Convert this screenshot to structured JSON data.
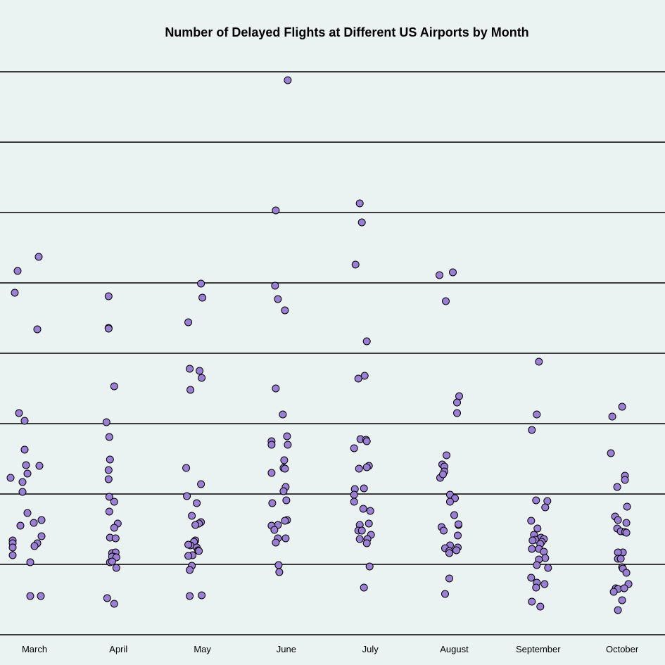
{
  "chart_data": {
    "type": "scatter",
    "title": "Number of Delayed Flights at Different US Airports by Month",
    "xlabel": "",
    "ylabel": "",
    "categories": [
      "March",
      "April",
      "May",
      "June",
      "July",
      "August",
      "September",
      "October"
    ],
    "ylim": [
      0,
      8
    ],
    "gridlines": [
      0,
      1,
      2,
      3,
      4,
      5,
      6,
      7,
      8
    ],
    "grid": true,
    "legend": "none",
    "colors": {
      "point_fill": "#9b7fd4",
      "point_stroke": "#000000",
      "background": "#eaf2f2"
    },
    "points": [
      {
        "x": "March",
        "jitter": -0.24,
        "y": 5.17
      },
      {
        "x": "March",
        "jitter": 0.06,
        "y": 5.37
      },
      {
        "x": "March",
        "jitter": -0.28,
        "y": 4.86
      },
      {
        "x": "March",
        "jitter": 0.04,
        "y": 4.34
      },
      {
        "x": "March",
        "jitter": -0.22,
        "y": 3.15
      },
      {
        "x": "March",
        "jitter": -0.14,
        "y": 3.04
      },
      {
        "x": "March",
        "jitter": -0.14,
        "y": 2.63
      },
      {
        "x": "March",
        "jitter": -0.12,
        "y": 2.41
      },
      {
        "x": "March",
        "jitter": 0.07,
        "y": 2.4
      },
      {
        "x": "March",
        "jitter": -0.1,
        "y": 2.29
      },
      {
        "x": "March",
        "jitter": -0.34,
        "y": 2.23
      },
      {
        "x": "March",
        "jitter": -0.17,
        "y": 2.17
      },
      {
        "x": "March",
        "jitter": -0.17,
        "y": 2.03
      },
      {
        "x": "March",
        "jitter": -0.1,
        "y": 1.73
      },
      {
        "x": "March",
        "jitter": 0.1,
        "y": 1.63
      },
      {
        "x": "March",
        "jitter": -0.01,
        "y": 1.59
      },
      {
        "x": "March",
        "jitter": -0.2,
        "y": 1.55
      },
      {
        "x": "March",
        "jitter": 0.1,
        "y": 1.4
      },
      {
        "x": "March",
        "jitter": -0.31,
        "y": 1.34
      },
      {
        "x": "March",
        "jitter": -0.31,
        "y": 1.3
      },
      {
        "x": "March",
        "jitter": 0.04,
        "y": 1.3
      },
      {
        "x": "March",
        "jitter": 0.0,
        "y": 1.26
      },
      {
        "x": "March",
        "jitter": -0.31,
        "y": 1.24
      },
      {
        "x": "March",
        "jitter": -0.31,
        "y": 1.13
      },
      {
        "x": "March",
        "jitter": -0.06,
        "y": 1.03
      },
      {
        "x": "March",
        "jitter": -0.06,
        "y": 0.55
      },
      {
        "x": "March",
        "jitter": 0.09,
        "y": 0.55
      },
      {
        "x": "April",
        "jitter": -0.14,
        "y": 4.81
      },
      {
        "x": "April",
        "jitter": -0.14,
        "y": 4.36
      },
      {
        "x": "April",
        "jitter": -0.14,
        "y": 4.35
      },
      {
        "x": "April",
        "jitter": -0.06,
        "y": 3.53
      },
      {
        "x": "April",
        "jitter": -0.17,
        "y": 3.02
      },
      {
        "x": "April",
        "jitter": -0.13,
        "y": 2.81
      },
      {
        "x": "April",
        "jitter": -0.12,
        "y": 2.49
      },
      {
        "x": "April",
        "jitter": -0.14,
        "y": 2.34
      },
      {
        "x": "April",
        "jitter": -0.14,
        "y": 2.21
      },
      {
        "x": "April",
        "jitter": -0.13,
        "y": 1.96
      },
      {
        "x": "April",
        "jitter": -0.06,
        "y": 1.89
      },
      {
        "x": "April",
        "jitter": -0.13,
        "y": 1.75
      },
      {
        "x": "April",
        "jitter": -0.01,
        "y": 1.58
      },
      {
        "x": "April",
        "jitter": -0.06,
        "y": 1.52
      },
      {
        "x": "April",
        "jitter": -0.12,
        "y": 1.38
      },
      {
        "x": "April",
        "jitter": -0.04,
        "y": 1.37
      },
      {
        "x": "April",
        "jitter": -0.09,
        "y": 1.16
      },
      {
        "x": "April",
        "jitter": -0.04,
        "y": 1.17
      },
      {
        "x": "April",
        "jitter": -0.12,
        "y": 1.03
      },
      {
        "x": "April",
        "jitter": -0.07,
        "y": 1.11
      },
      {
        "x": "April",
        "jitter": -0.09,
        "y": 1.11
      },
      {
        "x": "April",
        "jitter": -0.03,
        "y": 1.1
      },
      {
        "x": "April",
        "jitter": -0.09,
        "y": 1.04
      },
      {
        "x": "April",
        "jitter": -0.03,
        "y": 0.95
      },
      {
        "x": "April",
        "jitter": -0.16,
        "y": 0.52
      },
      {
        "x": "April",
        "jitter": -0.06,
        "y": 0.44
      },
      {
        "x": "May",
        "jitter": -0.02,
        "y": 4.99
      },
      {
        "x": "May",
        "jitter": 0.0,
        "y": 4.79
      },
      {
        "x": "May",
        "jitter": -0.2,
        "y": 4.44
      },
      {
        "x": "May",
        "jitter": -0.18,
        "y": 3.78
      },
      {
        "x": "May",
        "jitter": -0.04,
        "y": 3.75
      },
      {
        "x": "May",
        "jitter": -0.01,
        "y": 3.65
      },
      {
        "x": "May",
        "jitter": -0.17,
        "y": 3.48
      },
      {
        "x": "May",
        "jitter": -0.23,
        "y": 2.37
      },
      {
        "x": "May",
        "jitter": -0.02,
        "y": 2.14
      },
      {
        "x": "May",
        "jitter": -0.22,
        "y": 1.97
      },
      {
        "x": "May",
        "jitter": -0.08,
        "y": 1.87
      },
      {
        "x": "May",
        "jitter": -0.15,
        "y": 1.69
      },
      {
        "x": "May",
        "jitter": -0.02,
        "y": 1.6
      },
      {
        "x": "May",
        "jitter": -0.05,
        "y": 1.58
      },
      {
        "x": "May",
        "jitter": -0.1,
        "y": 1.56
      },
      {
        "x": "May",
        "jitter": -0.1,
        "y": 1.34
      },
      {
        "x": "May",
        "jitter": -0.12,
        "y": 1.32
      },
      {
        "x": "May",
        "jitter": -0.17,
        "y": 1.27
      },
      {
        "x": "May",
        "jitter": -0.2,
        "y": 1.28
      },
      {
        "x": "May",
        "jitter": -0.08,
        "y": 1.24
      },
      {
        "x": "May",
        "jitter": -0.06,
        "y": 1.2
      },
      {
        "x": "May",
        "jitter": -0.14,
        "y": 1.13
      },
      {
        "x": "May",
        "jitter": -0.05,
        "y": 1.19
      },
      {
        "x": "May",
        "jitter": -0.2,
        "y": 1.12
      },
      {
        "x": "May",
        "jitter": -0.15,
        "y": 0.98
      },
      {
        "x": "May",
        "jitter": -0.18,
        "y": 0.92
      },
      {
        "x": "May",
        "jitter": -0.18,
        "y": 0.55
      },
      {
        "x": "May",
        "jitter": -0.01,
        "y": 0.56
      },
      {
        "x": "June",
        "jitter": 0.02,
        "y": 7.88
      },
      {
        "x": "June",
        "jitter": -0.15,
        "y": 6.03
      },
      {
        "x": "June",
        "jitter": -0.16,
        "y": 4.96
      },
      {
        "x": "June",
        "jitter": -0.12,
        "y": 4.77
      },
      {
        "x": "June",
        "jitter": -0.02,
        "y": 4.61
      },
      {
        "x": "June",
        "jitter": -0.15,
        "y": 3.5
      },
      {
        "x": "June",
        "jitter": -0.05,
        "y": 3.13
      },
      {
        "x": "June",
        "jitter": 0.01,
        "y": 2.82
      },
      {
        "x": "June",
        "jitter": -0.21,
        "y": 2.75
      },
      {
        "x": "June",
        "jitter": 0.02,
        "y": 2.7
      },
      {
        "x": "June",
        "jitter": -0.21,
        "y": 2.7
      },
      {
        "x": "June",
        "jitter": -0.03,
        "y": 2.48
      },
      {
        "x": "June",
        "jitter": -0.04,
        "y": 2.37
      },
      {
        "x": "June",
        "jitter": -0.02,
        "y": 2.36
      },
      {
        "x": "June",
        "jitter": -0.21,
        "y": 2.3
      },
      {
        "x": "June",
        "jitter": -0.01,
        "y": 2.1
      },
      {
        "x": "June",
        "jitter": -0.04,
        "y": 2.04
      },
      {
        "x": "June",
        "jitter": 0.0,
        "y": 1.91
      },
      {
        "x": "June",
        "jitter": -0.2,
        "y": 1.87
      },
      {
        "x": "June",
        "jitter": 0.01,
        "y": 1.63
      },
      {
        "x": "June",
        "jitter": -0.02,
        "y": 1.62
      },
      {
        "x": "June",
        "jitter": -0.12,
        "y": 1.56
      },
      {
        "x": "June",
        "jitter": -0.21,
        "y": 1.55
      },
      {
        "x": "June",
        "jitter": -0.17,
        "y": 1.49
      },
      {
        "x": "June",
        "jitter": -0.12,
        "y": 1.37
      },
      {
        "x": "June",
        "jitter": -0.01,
        "y": 1.37
      },
      {
        "x": "June",
        "jitter": -0.15,
        "y": 1.31
      },
      {
        "x": "June",
        "jitter": -0.11,
        "y": 0.99
      },
      {
        "x": "June",
        "jitter": -0.1,
        "y": 0.89
      },
      {
        "x": "July",
        "jitter": -0.15,
        "y": 6.13
      },
      {
        "x": "July",
        "jitter": -0.12,
        "y": 5.86
      },
      {
        "x": "July",
        "jitter": -0.21,
        "y": 5.26
      },
      {
        "x": "July",
        "jitter": -0.05,
        "y": 4.17
      },
      {
        "x": "July",
        "jitter": -0.08,
        "y": 3.68
      },
      {
        "x": "July",
        "jitter": -0.17,
        "y": 3.64
      },
      {
        "x": "July",
        "jitter": -0.14,
        "y": 2.78
      },
      {
        "x": "July",
        "jitter": -0.06,
        "y": 2.77
      },
      {
        "x": "July",
        "jitter": -0.05,
        "y": 2.75
      },
      {
        "x": "July",
        "jitter": -0.23,
        "y": 2.65
      },
      {
        "x": "July",
        "jitter": -0.02,
        "y": 2.4
      },
      {
        "x": "July",
        "jitter": -0.16,
        "y": 2.36
      },
      {
        "x": "July",
        "jitter": -0.05,
        "y": 2.38
      },
      {
        "x": "July",
        "jitter": -0.22,
        "y": 2.07
      },
      {
        "x": "July",
        "jitter": -0.09,
        "y": 2.08
      },
      {
        "x": "July",
        "jitter": -0.23,
        "y": 1.99
      },
      {
        "x": "July",
        "jitter": -0.23,
        "y": 1.89
      },
      {
        "x": "July",
        "jitter": -0.1,
        "y": 1.79
      },
      {
        "x": "July",
        "jitter": 0.0,
        "y": 1.76
      },
      {
        "x": "July",
        "jitter": -0.15,
        "y": 1.56
      },
      {
        "x": "July",
        "jitter": -0.02,
        "y": 1.58
      },
      {
        "x": "July",
        "jitter": -0.17,
        "y": 1.48
      },
      {
        "x": "July",
        "jitter": -0.12,
        "y": 1.48
      },
      {
        "x": "July",
        "jitter": 0.01,
        "y": 1.42
      },
      {
        "x": "July",
        "jitter": -0.04,
        "y": 1.36
      },
      {
        "x": "July",
        "jitter": -0.15,
        "y": 1.36
      },
      {
        "x": "July",
        "jitter": -0.05,
        "y": 1.3
      },
      {
        "x": "July",
        "jitter": -0.01,
        "y": 0.97
      },
      {
        "x": "July",
        "jitter": -0.09,
        "y": 0.67
      },
      {
        "x": "August",
        "jitter": -0.21,
        "y": 5.11
      },
      {
        "x": "August",
        "jitter": -0.02,
        "y": 5.15
      },
      {
        "x": "August",
        "jitter": -0.12,
        "y": 4.74
      },
      {
        "x": "August",
        "jitter": 0.07,
        "y": 3.39
      },
      {
        "x": "August",
        "jitter": 0.04,
        "y": 3.3
      },
      {
        "x": "August",
        "jitter": 0.04,
        "y": 3.15
      },
      {
        "x": "August",
        "jitter": -0.11,
        "y": 2.55
      },
      {
        "x": "August",
        "jitter": -0.17,
        "y": 2.42
      },
      {
        "x": "August",
        "jitter": -0.14,
        "y": 2.39
      },
      {
        "x": "August",
        "jitter": -0.14,
        "y": 2.32
      },
      {
        "x": "August",
        "jitter": -0.2,
        "y": 2.23
      },
      {
        "x": "August",
        "jitter": -0.16,
        "y": 2.28
      },
      {
        "x": "August",
        "jitter": -0.06,
        "y": 1.99
      },
      {
        "x": "August",
        "jitter": 0.01,
        "y": 1.94
      },
      {
        "x": "August",
        "jitter": -0.06,
        "y": 1.89
      },
      {
        "x": "August",
        "jitter": 0.0,
        "y": 1.7
      },
      {
        "x": "August",
        "jitter": 0.06,
        "y": 1.56
      },
      {
        "x": "August",
        "jitter": 0.06,
        "y": 1.57
      },
      {
        "x": "August",
        "jitter": -0.18,
        "y": 1.53
      },
      {
        "x": "August",
        "jitter": -0.15,
        "y": 1.48
      },
      {
        "x": "August",
        "jitter": 0.05,
        "y": 1.41
      },
      {
        "x": "August",
        "jitter": -0.06,
        "y": 1.27
      },
      {
        "x": "August",
        "jitter": 0.05,
        "y": 1.24
      },
      {
        "x": "August",
        "jitter": -0.13,
        "y": 1.23
      },
      {
        "x": "August",
        "jitter": -0.07,
        "y": 1.19
      },
      {
        "x": "August",
        "jitter": 0.03,
        "y": 1.2
      },
      {
        "x": "August",
        "jitter": -0.07,
        "y": 1.16
      },
      {
        "x": "August",
        "jitter": -0.07,
        "y": 0.8
      },
      {
        "x": "August",
        "jitter": -0.13,
        "y": 0.58
      },
      {
        "x": "September",
        "jitter": 0.01,
        "y": 3.88
      },
      {
        "x": "September",
        "jitter": -0.02,
        "y": 3.13
      },
      {
        "x": "September",
        "jitter": -0.09,
        "y": 2.91
      },
      {
        "x": "September",
        "jitter": -0.03,
        "y": 1.91
      },
      {
        "x": "September",
        "jitter": 0.13,
        "y": 1.9
      },
      {
        "x": "September",
        "jitter": 0.1,
        "y": 1.81
      },
      {
        "x": "September",
        "jitter": -0.1,
        "y": 1.62
      },
      {
        "x": "September",
        "jitter": -0.01,
        "y": 1.51
      },
      {
        "x": "September",
        "jitter": -0.06,
        "y": 1.42
      },
      {
        "x": "September",
        "jitter": 0.04,
        "y": 1.38
      },
      {
        "x": "September",
        "jitter": 0.08,
        "y": 1.36
      },
      {
        "x": "September",
        "jitter": -0.04,
        "y": 1.35
      },
      {
        "x": "September",
        "jitter": -0.08,
        "y": 1.34
      },
      {
        "x": "September",
        "jitter": 0.05,
        "y": 1.32
      },
      {
        "x": "September",
        "jitter": 0.03,
        "y": 1.29
      },
      {
        "x": "September",
        "jitter": -0.09,
        "y": 1.22
      },
      {
        "x": "September",
        "jitter": 0.01,
        "y": 1.22
      },
      {
        "x": "September",
        "jitter": 0.08,
        "y": 1.18
      },
      {
        "x": "September",
        "jitter": 0.1,
        "y": 1.09
      },
      {
        "x": "September",
        "jitter": 0.01,
        "y": 1.07
      },
      {
        "x": "September",
        "jitter": -0.02,
        "y": 0.99
      },
      {
        "x": "September",
        "jitter": 0.14,
        "y": 0.95
      },
      {
        "x": "September",
        "jitter": -0.1,
        "y": 0.81
      },
      {
        "x": "September",
        "jitter": -0.02,
        "y": 0.74
      },
      {
        "x": "September",
        "jitter": 0.09,
        "y": 0.72
      },
      {
        "x": "September",
        "jitter": -0.03,
        "y": 0.67
      },
      {
        "x": "September",
        "jitter": -0.09,
        "y": 0.47
      },
      {
        "x": "September",
        "jitter": 0.03,
        "y": 0.4
      },
      {
        "x": "October",
        "jitter": 0.0,
        "y": 3.24
      },
      {
        "x": "October",
        "jitter": -0.14,
        "y": 3.1
      },
      {
        "x": "October",
        "jitter": -0.16,
        "y": 2.58
      },
      {
        "x": "October",
        "jitter": 0.04,
        "y": 2.26
      },
      {
        "x": "October",
        "jitter": 0.04,
        "y": 2.2
      },
      {
        "x": "October",
        "jitter": -0.07,
        "y": 2.1
      },
      {
        "x": "October",
        "jitter": 0.07,
        "y": 1.82
      },
      {
        "x": "October",
        "jitter": -0.1,
        "y": 1.68
      },
      {
        "x": "October",
        "jitter": -0.06,
        "y": 1.63
      },
      {
        "x": "October",
        "jitter": 0.06,
        "y": 1.59
      },
      {
        "x": "October",
        "jitter": -0.07,
        "y": 1.51
      },
      {
        "x": "October",
        "jitter": -0.02,
        "y": 1.47
      },
      {
        "x": "October",
        "jitter": 0.04,
        "y": 1.46
      },
      {
        "x": "October",
        "jitter": 0.06,
        "y": 1.45
      },
      {
        "x": "October",
        "jitter": 0.01,
        "y": 1.17
      },
      {
        "x": "October",
        "jitter": -0.06,
        "y": 1.17
      },
      {
        "x": "October",
        "jitter": -0.06,
        "y": 1.08
      },
      {
        "x": "October",
        "jitter": -0.02,
        "y": 1.08
      },
      {
        "x": "October",
        "jitter": 0.0,
        "y": 0.96
      },
      {
        "x": "October",
        "jitter": 0.01,
        "y": 0.94
      },
      {
        "x": "October",
        "jitter": 0.06,
        "y": 0.88
      },
      {
        "x": "October",
        "jitter": 0.09,
        "y": 0.72
      },
      {
        "x": "October",
        "jitter": -0.09,
        "y": 0.66
      },
      {
        "x": "October",
        "jitter": -0.06,
        "y": 0.65
      },
      {
        "x": "October",
        "jitter": 0.03,
        "y": 0.66
      },
      {
        "x": "October",
        "jitter": -0.12,
        "y": 0.61
      },
      {
        "x": "October",
        "jitter": 0.0,
        "y": 0.49
      },
      {
        "x": "October",
        "jitter": -0.06,
        "y": 0.35
      }
    ]
  }
}
